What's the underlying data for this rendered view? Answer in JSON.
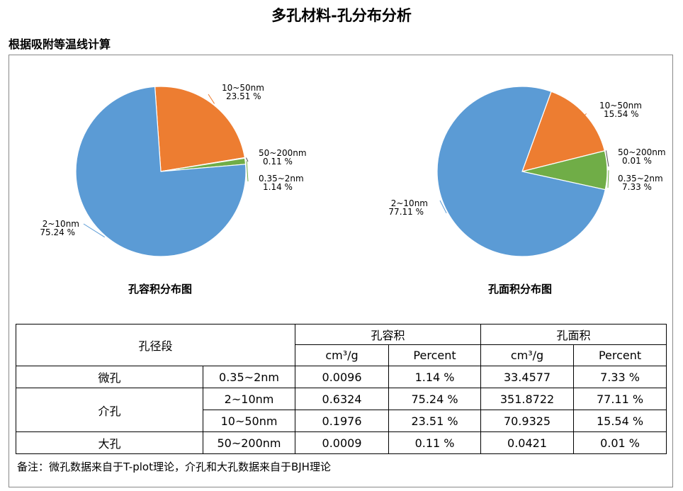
{
  "title": "多孔材料-孔分布分析",
  "section_title": "根据吸附等温线计算",
  "chart_data": [
    {
      "type": "pie",
      "title": "孔容积分布图",
      "slices": [
        {
          "label": "10~50nm",
          "value": 23.51,
          "value_text": "23.51 %",
          "color": "#ED7D31"
        },
        {
          "label": "50~200nm",
          "value": 0.11,
          "value_text": "0.11 %",
          "color": "#505050"
        },
        {
          "label": "0.35~2nm",
          "value": 1.14,
          "value_text": "1.14 %",
          "color": "#70AD47"
        },
        {
          "label": "2~10nm",
          "value": 75.24,
          "value_text": "75.24 %",
          "color": "#5B9BD5"
        }
      ]
    },
    {
      "type": "pie",
      "title": "孔面积分布图",
      "slices": [
        {
          "label": "10~50nm",
          "value": 15.54,
          "value_text": "15.54 %",
          "color": "#ED7D31"
        },
        {
          "label": "50~200nm",
          "value": 0.01,
          "value_text": "0.01 %",
          "color": "#505050"
        },
        {
          "label": "0.35~2nm",
          "value": 7.33,
          "value_text": "7.33 %",
          "color": "#70AD47"
        },
        {
          "label": "2~10nm",
          "value": 77.11,
          "value_text": "77.11 %",
          "color": "#5B9BD5"
        }
      ]
    }
  ],
  "table": {
    "header": {
      "pore_range": "孔径段",
      "volume": "孔容积",
      "area": "孔面积",
      "unit": "cm³/g",
      "percent": "Percent"
    },
    "groups": {
      "micro": "微孔",
      "meso": "介孔",
      "macro": "大孔"
    },
    "rows": [
      {
        "range": "0.35~2nm",
        "vol": "0.0096",
        "vol_pct": "1.14 %",
        "area": "33.4577",
        "area_pct": "7.33 %"
      },
      {
        "range": "2~10nm",
        "vol": "0.6324",
        "vol_pct": "75.24 %",
        "area": "351.8722",
        "area_pct": "77.11 %"
      },
      {
        "range": "10~50nm",
        "vol": "0.1976",
        "vol_pct": "23.51 %",
        "area": "70.9325",
        "area_pct": "15.54 %"
      },
      {
        "range": "50~200nm",
        "vol": "0.0009",
        "vol_pct": "0.11 %",
        "area": "0.0421",
        "area_pct": "0.01 %"
      }
    ]
  },
  "note": "备注：微孔数据来自于T-plot理论，介孔和大孔数据来自于BJH理论"
}
